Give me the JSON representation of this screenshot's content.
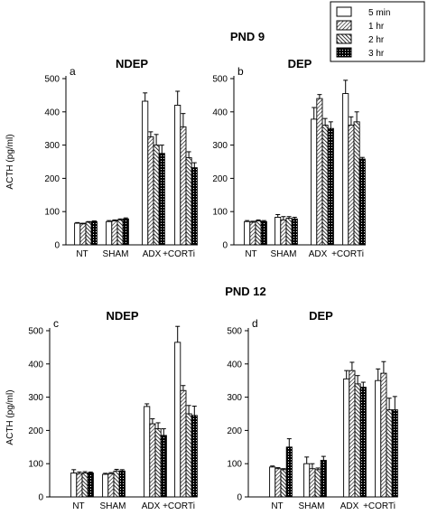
{
  "figure": {
    "sections": [
      {
        "title": "PND 9"
      },
      {
        "title": "PND 12"
      }
    ],
    "legend": [
      "5 min",
      "1 hr",
      "2 hr",
      "3 hr"
    ],
    "ylabel": "ACTH (pg/ml)"
  },
  "chart_data": [
    {
      "type": "bar",
      "section": "PND 9",
      "panel": "a",
      "title": "NDEP",
      "categories": [
        "NT",
        "SHAM",
        "ADX",
        "+CORTi"
      ],
      "ylabel": "ACTH (pg/ml)",
      "ylim": [
        0,
        500
      ],
      "yticks": [
        0,
        100,
        200,
        300,
        400,
        500
      ],
      "series": [
        {
          "name": "5 min",
          "values": [
            65,
            70,
            432,
            420
          ],
          "errors": [
            2,
            3,
            25,
            42
          ]
        },
        {
          "name": "1 hr",
          "values": [
            63,
            72,
            325,
            355
          ],
          "errors": [
            2,
            3,
            15,
            40
          ]
        },
        {
          "name": "2 hr",
          "values": [
            68,
            75,
            300,
            262
          ],
          "errors": [
            2,
            3,
            32,
            18
          ]
        },
        {
          "name": "3 hr",
          "values": [
            70,
            78,
            275,
            232
          ],
          "errors": [
            2,
            3,
            25,
            15
          ]
        }
      ]
    },
    {
      "type": "bar",
      "section": "PND 9",
      "panel": "b",
      "title": "DEP",
      "categories": [
        "NT",
        "SHAM",
        "ADX",
        "+CORTi"
      ],
      "ylim": [
        0,
        500
      ],
      "yticks": [
        0,
        100,
        200,
        300,
        400,
        500
      ],
      "series": [
        {
          "name": "5 min",
          "values": [
            70,
            83,
            378,
            455
          ],
          "errors": [
            3,
            8,
            35,
            40
          ]
        },
        {
          "name": "1 hr",
          "values": [
            68,
            75,
            440,
            360
          ],
          "errors": [
            3,
            10,
            12,
            25
          ]
        },
        {
          "name": "2 hr",
          "values": [
            72,
            80,
            360,
            370
          ],
          "errors": [
            3,
            5,
            20,
            30
          ]
        },
        {
          "name": "3 hr",
          "values": [
            70,
            78,
            350,
            258
          ],
          "errors": [
            3,
            5,
            20,
            5
          ]
        }
      ]
    },
    {
      "type": "bar",
      "section": "PND 12",
      "panel": "c",
      "title": "NDEP",
      "categories": [
        "NT",
        "SHAM",
        "ADX",
        "+CORTi"
      ],
      "ylabel": "ACTH (pg/ml)",
      "ylim": [
        0,
        500
      ],
      "yticks": [
        0,
        100,
        200,
        300,
        400,
        500
      ],
      "series": [
        {
          "name": "5 min",
          "values": [
            72,
            68,
            272,
            465
          ],
          "errors": [
            10,
            3,
            8,
            48
          ]
        },
        {
          "name": "1 hr",
          "values": [
            70,
            70,
            220,
            320
          ],
          "errors": [
            5,
            3,
            15,
            15
          ]
        },
        {
          "name": "2 hr",
          "values": [
            72,
            78,
            205,
            250
          ],
          "errors": [
            4,
            5,
            18,
            25
          ]
        },
        {
          "name": "3 hr",
          "values": [
            72,
            78,
            185,
            245
          ],
          "errors": [
            3,
            4,
            20,
            28
          ]
        }
      ]
    },
    {
      "type": "bar",
      "section": "PND 12",
      "panel": "d",
      "title": "DEP",
      "categories": [
        "NT",
        "SHAM",
        "ADX",
        "+CORTi"
      ],
      "ylim": [
        0,
        500
      ],
      "yticks": [
        0,
        100,
        200,
        300,
        400,
        500
      ],
      "series": [
        {
          "name": "5 min",
          "values": [
            90,
            100,
            355,
            350
          ],
          "errors": [
            3,
            20,
            25,
            35
          ]
        },
        {
          "name": "1 hr",
          "values": [
            85,
            85,
            380,
            372
          ],
          "errors": [
            3,
            15,
            25,
            35
          ]
        },
        {
          "name": "2 hr",
          "values": [
            82,
            82,
            340,
            262
          ],
          "errors": [
            3,
            5,
            25,
            35
          ]
        },
        {
          "name": "3 hr",
          "values": [
            150,
            110,
            330,
            262
          ],
          "errors": [
            25,
            12,
            15,
            40
          ]
        }
      ]
    }
  ]
}
